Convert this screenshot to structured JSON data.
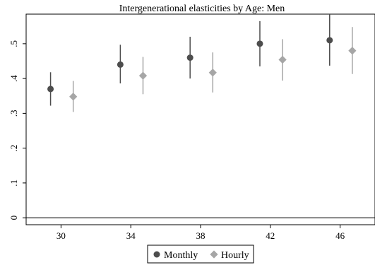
{
  "chart_data": {
    "type": "scatter",
    "title": "Intergenerational elasticities by Age: Men",
    "xlabel": "",
    "ylabel": "",
    "xlim": [
      28,
      48
    ],
    "ylim": [
      -0.02,
      0.585
    ],
    "xticks": [
      "30",
      "34",
      "38",
      "42",
      "46"
    ],
    "yticks": [
      "0",
      ".1",
      ".2",
      ".3",
      ".4",
      ".5"
    ],
    "reference_line": 0,
    "grid": false,
    "legend_position": "bottom-center",
    "series": [
      {
        "name": "Monthly",
        "marker": "circle",
        "color": "#4d4d4d",
        "x": [
          29.4,
          33.4,
          37.4,
          41.4,
          45.4
        ],
        "y": [
          0.37,
          0.44,
          0.46,
          0.5,
          0.51
        ],
        "ci_low": [
          0.322,
          0.386,
          0.4,
          0.435,
          0.437
        ],
        "ci_high": [
          0.418,
          0.497,
          0.52,
          0.565,
          0.585
        ]
      },
      {
        "name": "Hourly",
        "marker": "diamond",
        "color": "#a6a6a6",
        "x": [
          30.7,
          34.7,
          38.7,
          42.7,
          46.7
        ],
        "y": [
          0.348,
          0.408,
          0.417,
          0.454,
          0.48
        ],
        "ci_low": [
          0.304,
          0.355,
          0.36,
          0.394,
          0.413
        ],
        "ci_high": [
          0.393,
          0.462,
          0.475,
          0.513,
          0.548
        ]
      }
    ]
  }
}
